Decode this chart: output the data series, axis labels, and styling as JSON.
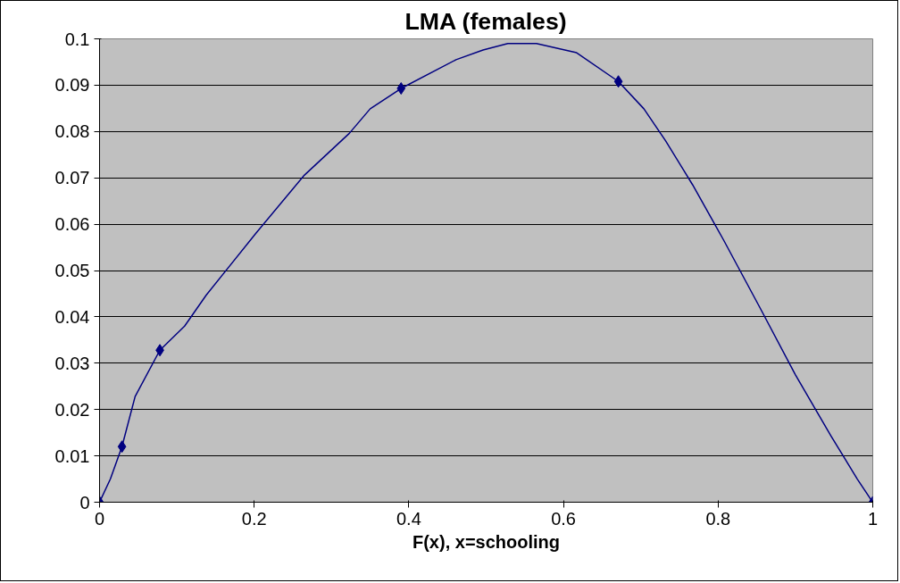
{
  "chart_data": {
    "type": "line",
    "title": "LMA (females)",
    "xlabel": "F(x), x=schooling",
    "series": [
      {
        "color": "#000080",
        "marker": "none",
        "x": [
          0,
          0.014,
          0.029,
          0.046,
          0.078,
          0.11,
          0.138,
          0.202,
          0.265,
          0.323,
          0.35,
          0.39,
          0.461,
          0.496,
          0.528,
          0.565,
          0.617,
          0.671,
          0.704,
          0.732,
          0.767,
          0.807,
          0.854,
          0.9,
          0.946,
          0.98,
          1
        ],
        "values": [
          0,
          0.005,
          0.012,
          0.0228,
          0.0328,
          0.038,
          0.0447,
          0.058,
          0.0706,
          0.0796,
          0.0849,
          0.0893,
          0.0955,
          0.0976,
          0.099,
          0.099,
          0.097,
          0.0908,
          0.0849,
          0.078,
          0.0685,
          0.0566,
          0.042,
          0.0275,
          0.0143,
          0.005,
          0
        ]
      },
      {
        "type": "scatter",
        "color": "#000080",
        "marker": "diamond",
        "x": [
          0,
          0.029,
          0.078,
          0.39,
          0.671,
          1
        ],
        "values": [
          0,
          0.012,
          0.0328,
          0.0893,
          0.0908,
          0
        ]
      }
    ],
    "xlim": [
      0,
      1
    ],
    "xticks": [
      0,
      0.2,
      0.4,
      0.6,
      0.8,
      1
    ],
    "ylim": [
      0,
      0.1
    ],
    "yticks": [
      0,
      0.01,
      0.02,
      0.03,
      0.04,
      0.05,
      0.06,
      0.07,
      0.08,
      0.09,
      0.1
    ],
    "grid": "y",
    "line_style": "solid"
  }
}
